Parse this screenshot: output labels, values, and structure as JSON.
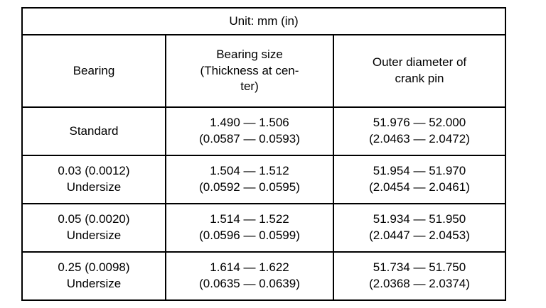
{
  "unit_label": "Unit: mm (in)",
  "headers": {
    "bearing": "Bearing",
    "bearing_size": "Bearing size\n(Thickness at cen-\nter)",
    "outer_diameter": "Outer diameter of\ncrank pin"
  },
  "rows": [
    {
      "bearing": "Standard",
      "bearing_size": "1.490 — 1.506\n(0.0587 — 0.0593)",
      "outer_diameter": "51.976 — 52.000\n(2.0463 — 2.0472)"
    },
    {
      "bearing": "0.03 (0.0012)\nUndersize",
      "bearing_size": "1.504 — 1.512\n(0.0592 — 0.0595)",
      "outer_diameter": "51.954 — 51.970\n(2.0454 — 2.0461)"
    },
    {
      "bearing": "0.05 (0.0020)\nUndersize",
      "bearing_size": "1.514 — 1.522\n(0.0596 — 0.0599)",
      "outer_diameter": "51.934 — 51.950\n(2.0447 — 2.0453)"
    },
    {
      "bearing": "0.25 (0.0098)\nUndersize",
      "bearing_size": "1.614 — 1.622\n(0.0635 — 0.0639)",
      "outer_diameter": "51.734 — 51.750\n(2.0368 — 2.0374)"
    }
  ],
  "colors": {
    "border": "#000000",
    "background": "#ffffff",
    "text": "#000000"
  }
}
